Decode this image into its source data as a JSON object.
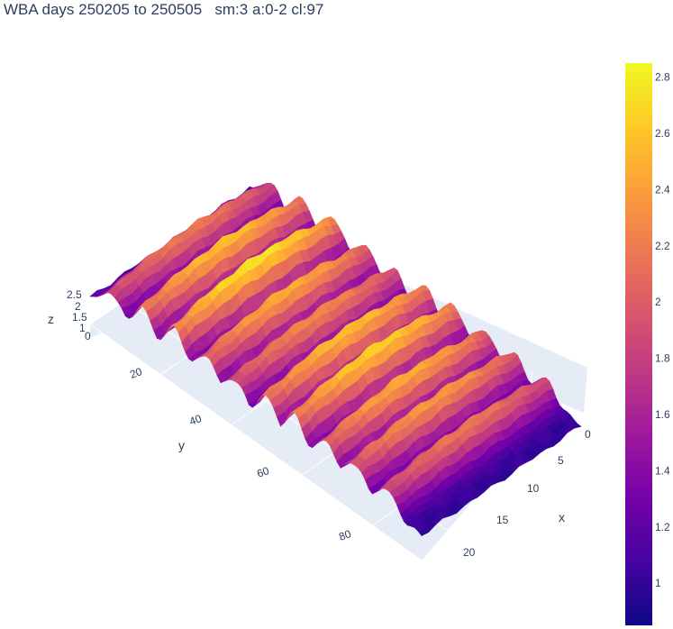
{
  "chart_data": {
    "type": "surface",
    "title": "WBA days 250205 to 250505   sm:3 a:0-2 cl:97",
    "xlabel": "x",
    "ylabel": "y",
    "zlabel": "z",
    "x_range": [
      0,
      23
    ],
    "y_range": [
      0,
      94
    ],
    "z_range": [
      0,
      2.85
    ],
    "x_ticks": [
      "0",
      "5",
      "10",
      "15",
      "20"
    ],
    "y_ticks": [
      "20",
      "40",
      "60",
      "80"
    ],
    "z_ticks": [
      "0",
      "1",
      "1.5",
      "2",
      "2.5"
    ],
    "colorscale": "plasma",
    "colorbar": {
      "range": [
        0.85,
        2.85
      ],
      "ticks": [
        "1",
        "1.2",
        "1.4",
        "1.6",
        "1.8",
        "2",
        "2.2",
        "2.4",
        "2.6",
        "2.8"
      ]
    },
    "ridge_y_positions": [
      6,
      15,
      24,
      33,
      41,
      50,
      58,
      67,
      75,
      84
    ],
    "ridge_peak_values": [
      2.2,
      2.6,
      2.8,
      2.5,
      2.3,
      2.6,
      2.7,
      2.5,
      2.4,
      2.2
    ],
    "baseline_value": 1.0,
    "colors": {
      "background": "#ffffff",
      "scene_plane": "#e5ecf6",
      "grid": "#ffffff",
      "text": "#2a3f5f"
    }
  }
}
